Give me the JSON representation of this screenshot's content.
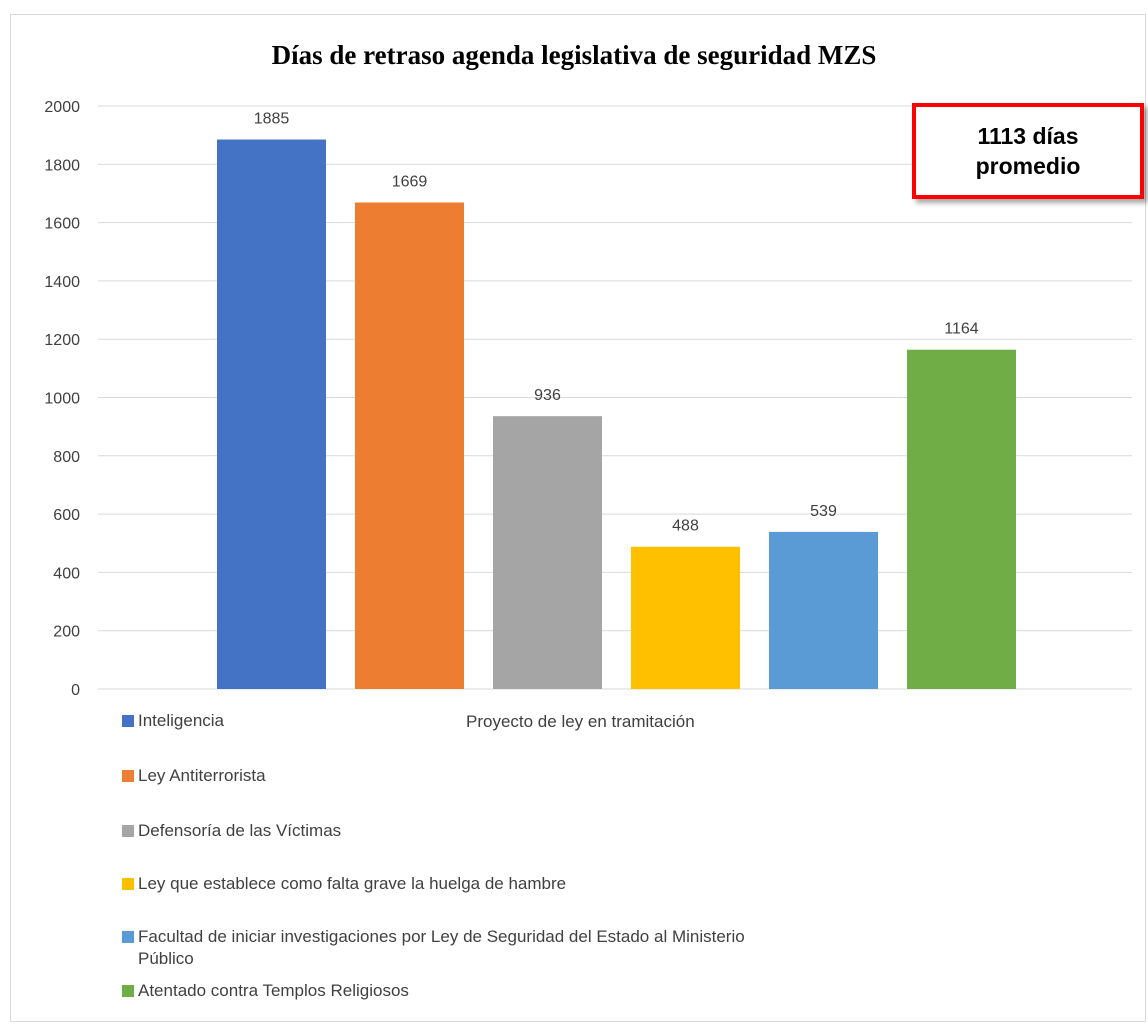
{
  "chart_data": {
    "type": "bar",
    "title": "Días de retraso agenda legislativa de seguridad MZS",
    "xlabel": "Proyecto de ley en tramitación",
    "ylabel": "",
    "ylim": [
      0,
      2000
    ],
    "yticks": [
      "0",
      "200",
      "400",
      "600",
      "800",
      "1000",
      "1200",
      "1400",
      "1600",
      "1800",
      "2000"
    ],
    "grid": true,
    "legend_position": "bottom-left",
    "series": [
      {
        "name": "Inteligencia",
        "value": 1885,
        "color": "#4472c4"
      },
      {
        "name": "Ley Antiterrorista",
        "value": 1669,
        "color": "#ed7d31"
      },
      {
        "name": "Defensoría de las Víctimas",
        "value": 936,
        "color": "#a5a5a5"
      },
      {
        "name": "Ley que establece como falta grave la huelga de hambre",
        "value": 488,
        "color": "#ffc000"
      },
      {
        "name": "Facultad de iniciar investigaciones por Ley de Seguridad del Estado al Ministerio Público",
        "value": 539,
        "color": "#5b9bd5"
      },
      {
        "name": "Atentado contra Templos Religiosos",
        "value": 1164,
        "color": "#70ad47"
      }
    ],
    "annotation": "1113 días promedio",
    "annotation_border_color": "#ff0000"
  }
}
